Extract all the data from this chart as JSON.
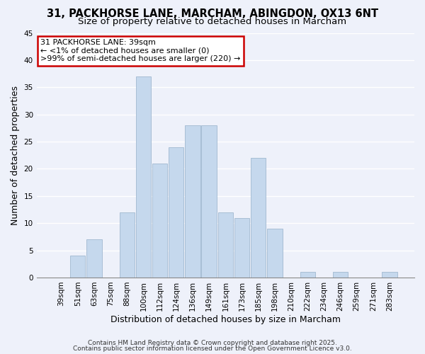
{
  "title_line1": "31, PACKHORSE LANE, MARCHAM, ABINGDON, OX13 6NT",
  "title_line2": "Size of property relative to detached houses in Marcham",
  "xlabel": "Distribution of detached houses by size in Marcham",
  "ylabel": "Number of detached properties",
  "categories": [
    "39sqm",
    "51sqm",
    "63sqm",
    "75sqm",
    "88sqm",
    "100sqm",
    "112sqm",
    "124sqm",
    "136sqm",
    "149sqm",
    "161sqm",
    "173sqm",
    "185sqm",
    "198sqm",
    "210sqm",
    "222sqm",
    "234sqm",
    "246sqm",
    "259sqm",
    "271sqm",
    "283sqm"
  ],
  "values": [
    0,
    4,
    7,
    0,
    12,
    37,
    21,
    24,
    28,
    28,
    12,
    11,
    22,
    9,
    0,
    1,
    0,
    1,
    0,
    0,
    1
  ],
  "bar_color": "#c5d8ed",
  "bar_edge_color": "#a0b8d0",
  "annotation_title": "31 PACKHORSE LANE: 39sqm",
  "annotation_line2": "← <1% of detached houses are smaller (0)",
  "annotation_line3": ">99% of semi-detached houses are larger (220) →",
  "annotation_box_color": "#ffffff",
  "annotation_border_color": "#cc0000",
  "ylim": [
    0,
    45
  ],
  "yticks": [
    0,
    5,
    10,
    15,
    20,
    25,
    30,
    35,
    40,
    45
  ],
  "footer_line1": "Contains HM Land Registry data © Crown copyright and database right 2025.",
  "footer_line2": "Contains public sector information licensed under the Open Government Licence v3.0.",
  "bg_color": "#eef1fa",
  "grid_color": "#ffffff",
  "title_fontsize": 10.5,
  "subtitle_fontsize": 9.5,
  "axis_label_fontsize": 9,
  "tick_fontsize": 7.5,
  "annotation_fontsize": 8,
  "footer_fontsize": 6.5
}
